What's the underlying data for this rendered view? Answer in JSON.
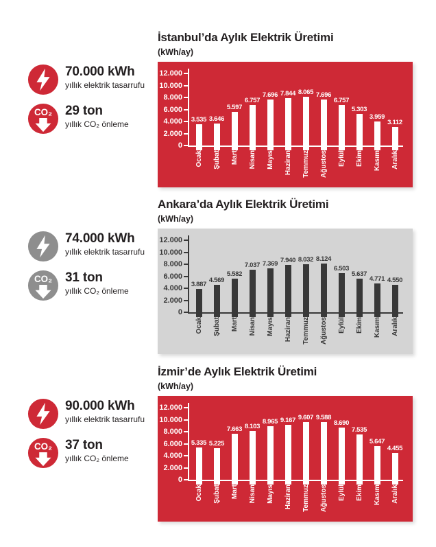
{
  "page": {
    "background": "#ffffff"
  },
  "icons": {
    "co2_text": "CO₂"
  },
  "months": [
    "Ocak",
    "Şubat",
    "Mart",
    "Nisan",
    "Mayıs",
    "Haziran",
    "Temmuz",
    "Ağustos",
    "Eylül",
    "Ekim",
    "Kasım",
    "Aralık"
  ],
  "sections": [
    {
      "id": "istanbul",
      "title": "İstanbul’da Aylık Elektrik Üretimi",
      "subtitle": "(kWh/ay)",
      "colors": {
        "accent": "#ce2936",
        "chart_bg": "#ce2936",
        "chart_fg": "#ffffff"
      },
      "stats": [
        {
          "icon": "lightning-icon",
          "value": "70.000 kWh",
          "label": "yıllık elektrik tasarrufu"
        },
        {
          "icon": "co2-down-icon",
          "value": "29 ton",
          "label": "yıllık CO₂ önleme"
        }
      ],
      "chart_data": {
        "type": "bar",
        "title": "İstanbul’da Aylık Elektrik Üretimi",
        "ylabel": "kWh/ay",
        "categories": [
          "Ocak",
          "Şubat",
          "Mart",
          "Nisan",
          "Mayıs",
          "Haziran",
          "Temmuz",
          "Ağustos",
          "Eylül",
          "Ekim",
          "Kasım",
          "Aralık"
        ],
        "values": [
          3535,
          3646,
          5597,
          6757,
          7696,
          7844,
          8065,
          7696,
          6757,
          5303,
          3959,
          3112
        ],
        "value_labels": [
          "3.535",
          "3.646",
          "5.597",
          "6.757",
          "7.696",
          "7.844",
          "8.065",
          "7.696",
          "6.757",
          "5.303",
          "3.959",
          "3.112"
        ],
        "ylim": [
          0,
          12000
        ],
        "yticks": {
          "labels": [
            "12.000",
            "10.000",
            "8.000",
            "6.000",
            "4.000",
            "2.000",
            "0"
          ],
          "values": [
            12000,
            10000,
            8000,
            6000,
            4000,
            2000,
            0
          ]
        },
        "grid": false,
        "legend": false
      }
    },
    {
      "id": "ankara",
      "title": "Ankara’da Aylık Elektrik Üretimi",
      "subtitle": "(kWh/ay)",
      "colors": {
        "accent": "#8e8e8e",
        "chart_bg": "#d4d4d4",
        "chart_fg": "#383838"
      },
      "stats": [
        {
          "icon": "lightning-icon",
          "value": "74.000 kWh",
          "label": "yıllık elektrik tasarrufu"
        },
        {
          "icon": "co2-down-icon",
          "value": "31 ton",
          "label": "yıllık CO₂ önleme"
        }
      ],
      "chart_data": {
        "type": "bar",
        "title": "Ankara’da Aylık Elektrik Üretimi",
        "ylabel": "kWh/ay",
        "categories": [
          "Ocak",
          "Şubat",
          "Mart",
          "Nisan",
          "Mayıs",
          "Haziran",
          "Temmuz",
          "Ağustos",
          "Eylül",
          "Ekim",
          "Kasım",
          "Aralık"
        ],
        "values": [
          3887,
          4569,
          5582,
          7037,
          7369,
          7940,
          8032,
          8124,
          6503,
          5637,
          4771,
          4550
        ],
        "value_labels": [
          "3.887",
          "4.569",
          "5.582",
          "7.037",
          "7.369",
          "7.940",
          "8.032",
          "8.124",
          "6.503",
          "5.637",
          "4.771",
          "4.550"
        ],
        "ylim": [
          0,
          12000
        ],
        "yticks": {
          "labels": [
            "12.000",
            "10.000",
            "8.000",
            "6.000",
            "4.000",
            "2.000",
            "0"
          ],
          "values": [
            12000,
            10000,
            8000,
            6000,
            4000,
            2000,
            0
          ]
        },
        "grid": false,
        "legend": false
      }
    },
    {
      "id": "izmir",
      "title": "İzmir’de Aylık Elektrik Üretimi",
      "subtitle": "(kWh/ay)",
      "colors": {
        "accent": "#ce2936",
        "chart_bg": "#ce2936",
        "chart_fg": "#ffffff"
      },
      "stats": [
        {
          "icon": "lightning-icon",
          "value": "90.000 kWh",
          "label": "yıllık elektrik tasarrufu"
        },
        {
          "icon": "co2-down-icon",
          "value": "37 ton",
          "label": "yıllık CO₂ önleme"
        }
      ],
      "chart_data": {
        "type": "bar",
        "title": "İzmir’de Aylık Elektrik Üretimi",
        "ylabel": "kWh/ay",
        "categories": [
          "Ocak",
          "Şubat",
          "Mart",
          "Nisan",
          "Mayıs",
          "Haziran",
          "Temmuz",
          "Ağustos",
          "Eylül",
          "Ekim",
          "Kasım",
          "Aralık"
        ],
        "values": [
          5335,
          5225,
          7663,
          8103,
          8965,
          9167,
          9607,
          9588,
          8690,
          7535,
          5647,
          4455
        ],
        "value_labels": [
          "5.335",
          "5.225",
          "7.663",
          "8.103",
          "8.965",
          "9.167",
          "9.607",
          "9.588",
          "8.690",
          "7.535",
          "5.647",
          "4.455"
        ],
        "ylim": [
          0,
          12000
        ],
        "yticks": {
          "labels": [
            "12.000",
            "10.000",
            "8.000",
            "6.000",
            "4.000",
            "2.000",
            "0"
          ],
          "values": [
            12000,
            10000,
            8000,
            6000,
            4000,
            2000,
            0
          ]
        },
        "grid": false,
        "legend": false
      }
    }
  ]
}
